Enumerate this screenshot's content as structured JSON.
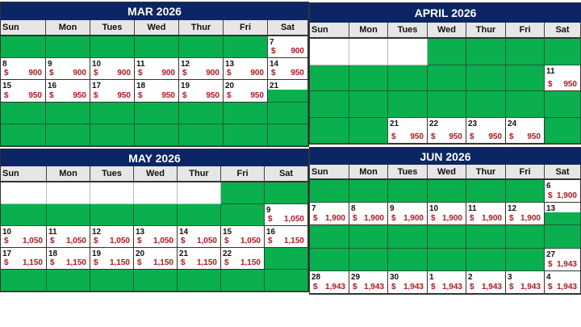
{
  "days": [
    "Sun",
    "Mon",
    "Tues",
    "Wed",
    "Thur",
    "Fri",
    "Sat"
  ],
  "colors": {
    "header": "#0b2565",
    "booked": "#0bb04e",
    "price": "#c0141b"
  },
  "calendars": [
    {
      "title": "MAR 2026",
      "weeks": [
        [
          "g",
          "g",
          "g",
          "g",
          "g",
          "g",
          {
            "d": "7",
            "p": "900"
          }
        ],
        [
          {
            "d": "8",
            "p": "900"
          },
          {
            "d": "9",
            "p": "900"
          },
          {
            "d": "10",
            "p": "900"
          },
          {
            "d": "11",
            "p": "900"
          },
          {
            "d": "12",
            "p": "900"
          },
          {
            "d": "13",
            "p": "900"
          },
          {
            "d": "14",
            "p": "950"
          }
        ],
        [
          {
            "d": "15",
            "p": "950"
          },
          {
            "d": "16",
            "p": "950"
          },
          {
            "d": "17",
            "p": "950"
          },
          {
            "d": "18",
            "p": "950"
          },
          {
            "d": "19",
            "p": "950"
          },
          {
            "d": "20",
            "p": "950"
          },
          {
            "d": "21",
            "g": true
          }
        ],
        [
          "g",
          "g",
          "g",
          "g",
          "g",
          "g",
          "g"
        ],
        [
          "g",
          "g",
          "g",
          "g",
          "g",
          "g",
          "g"
        ]
      ]
    },
    {
      "title": "APRIL 2026",
      "weeks": [
        [
          "w",
          "w",
          "w",
          "g",
          "g",
          "g",
          "g"
        ],
        [
          "g",
          "g",
          "g",
          "g",
          "g",
          "g",
          {
            "d": "11",
            "p": "950"
          }
        ],
        [
          "g",
          "g",
          "g",
          "g",
          "g",
          "g",
          "g"
        ],
        [
          "g",
          "g",
          {
            "d": "21",
            "p": "950"
          },
          {
            "d": "22",
            "p": "950"
          },
          {
            "d": "23",
            "p": "950"
          },
          {
            "d": "24",
            "p": "950"
          },
          "g"
        ]
      ]
    },
    {
      "title": "MAY 2026",
      "weeks": [
        [
          "w",
          "w",
          "w",
          "w",
          "w",
          "g",
          "g"
        ],
        [
          "g",
          "g",
          "g",
          "g",
          "g",
          "g",
          {
            "d": "9",
            "p": "1,050"
          }
        ],
        [
          {
            "d": "10",
            "p": "1,050"
          },
          {
            "d": "11",
            "p": "1,050"
          },
          {
            "d": "12",
            "p": "1,050"
          },
          {
            "d": "13",
            "p": "1,050"
          },
          {
            "d": "14",
            "p": "1,050"
          },
          {
            "d": "15",
            "p": "1,050"
          },
          {
            "d": "16",
            "p": "1,150"
          }
        ],
        [
          {
            "d": "17",
            "p": "1,150"
          },
          {
            "d": "18",
            "p": "1,150"
          },
          {
            "d": "19",
            "p": "1,150"
          },
          {
            "d": "20",
            "p": "1,150"
          },
          {
            "d": "21",
            "p": "1,150"
          },
          {
            "d": "22",
            "p": "1,150"
          },
          "g"
        ],
        [
          "g",
          "g",
          "g",
          "g",
          "g",
          "g",
          "g"
        ]
      ]
    },
    {
      "title": "JUN 2026",
      "weeks": [
        [
          "g",
          "g",
          "g",
          "g",
          "g",
          "g",
          {
            "d": "6",
            "p": "1,900"
          }
        ],
        [
          {
            "d": "7",
            "p": "1,900"
          },
          {
            "d": "8",
            "p": "1,900"
          },
          {
            "d": "9",
            "p": "1,900"
          },
          {
            "d": "10",
            "p": "1,900"
          },
          {
            "d": "11",
            "p": "1,900"
          },
          {
            "d": "12",
            "p": "1,900"
          },
          {
            "d": "13",
            "g": true
          }
        ],
        [
          "g",
          "g",
          "g",
          "g",
          "g",
          "g",
          "g"
        ],
        [
          "g",
          "g",
          "g",
          "g",
          "g",
          "g",
          {
            "d": "27",
            "p": "1,943"
          }
        ],
        [
          {
            "d": "28",
            "p": "1,943"
          },
          {
            "d": "29",
            "p": "1,943"
          },
          {
            "d": "30",
            "p": "1,943"
          },
          {
            "d": "1",
            "p": "1,943"
          },
          {
            "d": "2",
            "p": "1,943"
          },
          {
            "d": "3",
            "p": "1,943"
          },
          {
            "d": "4",
            "p": "1,943"
          }
        ]
      ]
    }
  ],
  "currency": "$"
}
